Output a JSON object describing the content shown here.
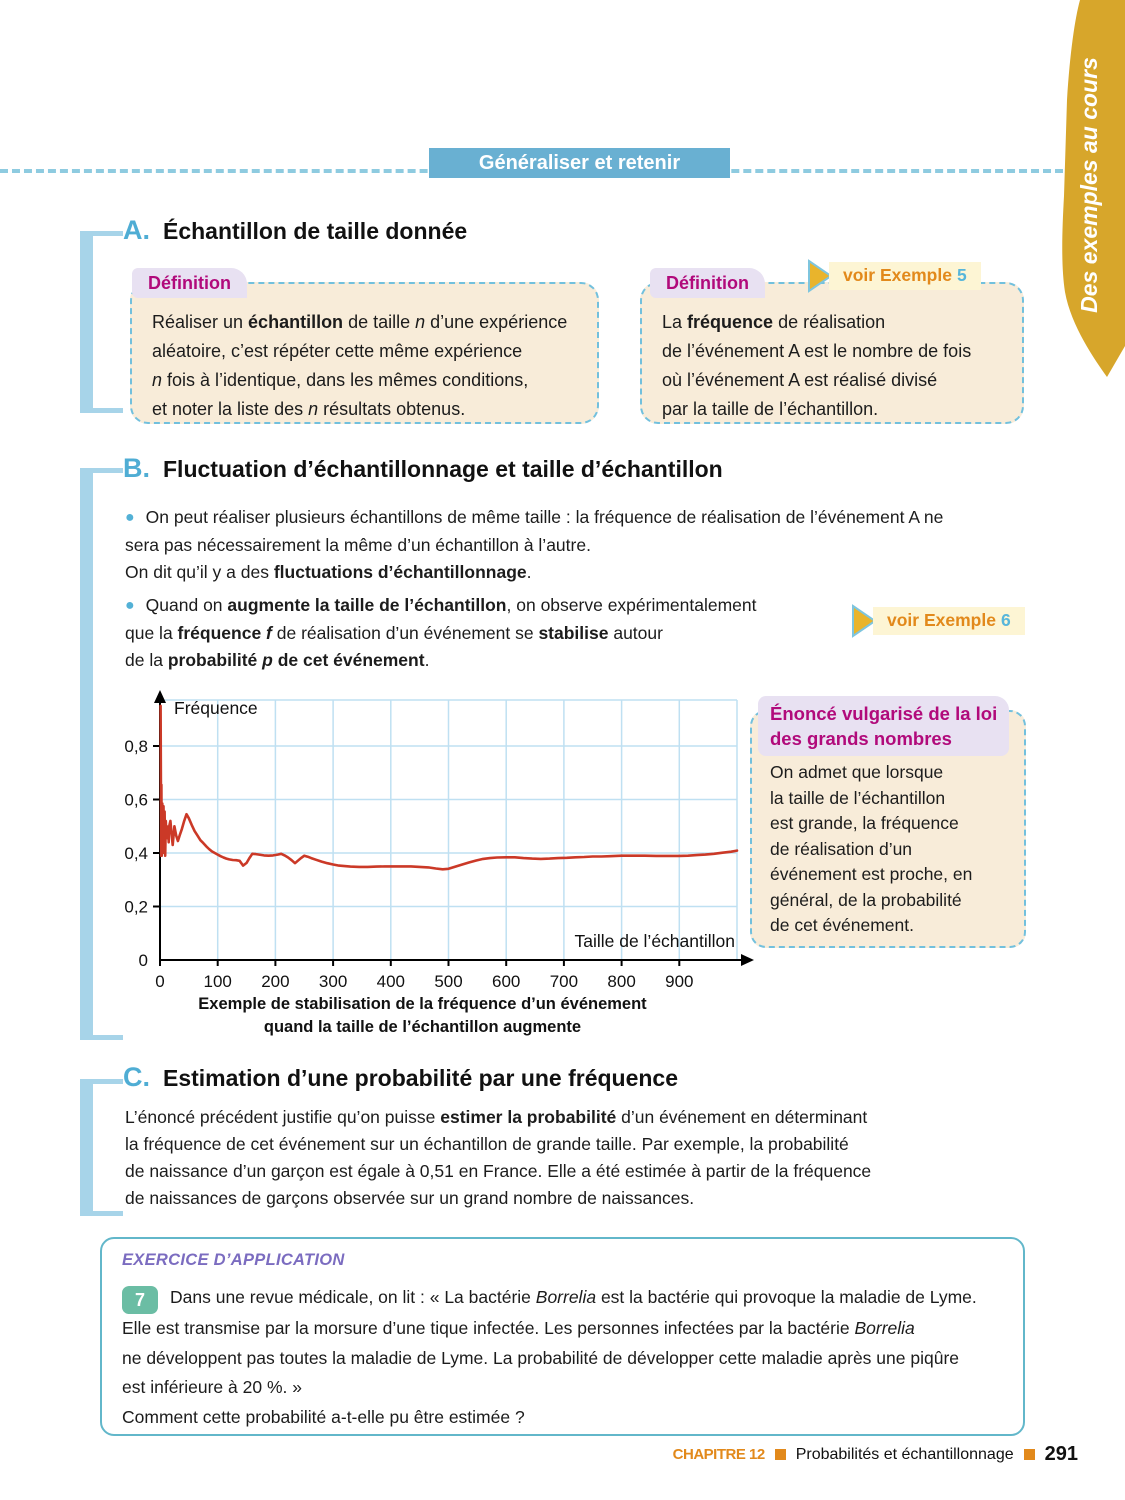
{
  "banner": {
    "label": "Généraliser et retenir"
  },
  "side_tab": {
    "label": "Des exemples au cours",
    "color": "#d7a62b"
  },
  "icons": {
    "bullet": "●"
  },
  "sections": {
    "a": {
      "letter": "A.",
      "title": "Échantillon de taille donnée"
    },
    "b": {
      "letter": "B.",
      "title": "Fluctuation d’échantillonnage et taille d’échantillon"
    },
    "c": {
      "letter": "C.",
      "title": "Estimation d’une probabilité par une fréquence"
    }
  },
  "definitions": [
    {
      "label": "Définition",
      "rich": [
        {
          "t": "Réaliser un "
        },
        {
          "t": "échantillon",
          "b": true
        },
        {
          "t": " de taille "
        },
        {
          "t": "n",
          "i": true
        },
        {
          "t": " d’une expérience"
        },
        {
          "br": true
        },
        {
          "t": "aléatoire, c’est répéter cette même expérience"
        },
        {
          "br": true
        },
        {
          "t": "n",
          "i": true
        },
        {
          "t": " fois à l’identique, dans les mêmes conditions,"
        },
        {
          "br": true
        },
        {
          "t": "et noter la liste des "
        },
        {
          "t": "n",
          "i": true
        },
        {
          "t": " résultats obtenus."
        }
      ]
    },
    {
      "label": "Définition",
      "rich": [
        {
          "t": "La "
        },
        {
          "t": "fréquence",
          "b": true
        },
        {
          "t": " de réalisation"
        },
        {
          "br": true
        },
        {
          "t": "de l’événement A est le nombre de fois"
        },
        {
          "br": true
        },
        {
          "t": "où l’événement A est réalisé divisé"
        },
        {
          "br": true
        },
        {
          "t": "par la taille de l’échantillon."
        }
      ]
    }
  ],
  "examples": [
    {
      "label": "voir Exemple",
      "number": "5"
    },
    {
      "label": "voir Exemple",
      "number": "6"
    }
  ],
  "paragraphs": {
    "b1": [
      {
        "t": "On peut réaliser plusieurs échantillons de même taille : la fréquence de réalisation de l’événement A ne"
      },
      {
        "br": true
      },
      {
        "t": "sera pas nécessairement la même d’un échantillon à l’autre."
      },
      {
        "br": true
      },
      {
        "t": "On dit qu’il y a des "
      },
      {
        "t": "fluctuations d’échantillonnage",
        "b": true
      },
      {
        "t": "."
      }
    ],
    "b2": [
      {
        "t": "Quand on "
      },
      {
        "t": "augmente la taille de l’échantillon",
        "b": true
      },
      {
        "t": ", on observe expérimentalement"
      },
      {
        "br": true
      },
      {
        "t": "que la "
      },
      {
        "t": "fréquence ",
        "b": true
      },
      {
        "t": "f",
        "b": true,
        "i": true
      },
      {
        "t": " de réalisation d’un événement se "
      },
      {
        "t": "stabilise",
        "b": true
      },
      {
        "t": " autour"
      },
      {
        "br": true
      },
      {
        "t": "de la "
      },
      {
        "t": "probabilité ",
        "b": true
      },
      {
        "t": "p",
        "b": true,
        "i": true
      },
      {
        "t": " de cet événement",
        "b": true
      },
      {
        "t": "."
      }
    ],
    "c1": [
      {
        "t": "L’énoncé précédent justifie qu’on puisse "
      },
      {
        "t": "estimer la probabilité",
        "b": true
      },
      {
        "t": " d’un événement en déterminant"
      },
      {
        "br": true
      },
      {
        "t": "la fréquence de cet événement sur un échantillon de grande taille. Par exemple, la probabilité"
      },
      {
        "br": true
      },
      {
        "t": "de naissance d’un garçon est égale à 0,51 en France. Elle a été estimée à partir de la fréquence"
      },
      {
        "br": true
      },
      {
        "t": "de naissances de garçons observée sur un grand nombre de naissances."
      }
    ]
  },
  "law_box": {
    "title_line1": "Énoncé vulgarisé de la loi",
    "title_line2": "des grands nombres",
    "rich": [
      {
        "t": "On admet que lorsque"
      },
      {
        "br": true
      },
      {
        "t": "la taille de l’échantillon"
      },
      {
        "br": true
      },
      {
        "t": "est grande, la fréquence"
      },
      {
        "br": true
      },
      {
        "t": "de réalisation d’un"
      },
      {
        "br": true
      },
      {
        "t": "événement est proche, en"
      },
      {
        "br": true
      },
      {
        "t": "général, de la probabilité"
      },
      {
        "br": true
      },
      {
        "t": "de cet événement."
      }
    ]
  },
  "chart_data": {
    "type": "line",
    "title": "Exemple de stabilisation de la fréquence d’un événement quand la taille de l’échantillon augmente",
    "caption_line1": "Exemple de stabilisation de la fréquence d’un événement",
    "caption_line2": "quand la taille de l’échantillon augmente",
    "xlabel": "Taille de l’échantillon",
    "ylabel": "Fréquence",
    "xlim": [
      0,
      1000
    ],
    "ylim": [
      0,
      0.97
    ],
    "grid": true,
    "x_ticks": [
      0,
      100,
      200,
      300,
      400,
      500,
      600,
      700,
      800,
      900
    ],
    "grid_x": [
      100,
      200,
      300,
      400,
      500,
      600,
      700,
      800,
      900,
      1000
    ],
    "y_ticks": [
      0.2,
      0.4,
      0.6,
      0.8
    ],
    "y_tick_labels": [
      "0,2",
      "0,4",
      "0,6",
      "0,8"
    ],
    "y_zero_label": "0",
    "x_zero_label": "0",
    "line_color": "#cb3927",
    "grid_color": "#bfe0f2",
    "axis_color": "#000000",
    "points": [
      [
        1,
        0.95
      ],
      [
        2,
        0.39
      ],
      [
        2.5,
        0.655
      ],
      [
        3,
        0.39
      ],
      [
        4,
        0.585
      ],
      [
        5,
        0.4
      ],
      [
        6,
        0.575
      ],
      [
        7,
        0.45
      ],
      [
        8,
        0.555
      ],
      [
        9,
        0.39
      ],
      [
        10,
        0.52
      ],
      [
        11,
        0.47
      ],
      [
        12,
        0.5
      ],
      [
        13,
        0.455
      ],
      [
        14,
        0.49
      ],
      [
        15,
        0.44
      ],
      [
        16,
        0.5
      ],
      [
        18,
        0.52
      ],
      [
        20,
        0.475
      ],
      [
        22,
        0.43
      ],
      [
        25,
        0.5
      ],
      [
        28,
        0.465
      ],
      [
        31,
        0.445
      ],
      [
        34,
        0.465
      ],
      [
        38,
        0.49
      ],
      [
        42,
        0.52
      ],
      [
        46,
        0.545
      ],
      [
        50,
        0.53
      ],
      [
        55,
        0.505
      ],
      [
        60,
        0.482
      ],
      [
        65,
        0.465
      ],
      [
        70,
        0.448
      ],
      [
        75,
        0.437
      ],
      [
        80,
        0.425
      ],
      [
        85,
        0.415
      ],
      [
        90,
        0.406
      ],
      [
        95,
        0.4
      ],
      [
        100,
        0.394
      ],
      [
        105,
        0.388
      ],
      [
        110,
        0.383
      ],
      [
        115,
        0.379
      ],
      [
        120,
        0.376
      ],
      [
        126,
        0.374
      ],
      [
        132,
        0.373
      ],
      [
        138,
        0.371
      ],
      [
        144,
        0.353
      ],
      [
        150,
        0.363
      ],
      [
        155,
        0.381
      ],
      [
        160,
        0.397
      ],
      [
        166,
        0.396
      ],
      [
        172,
        0.394
      ],
      [
        180,
        0.391
      ],
      [
        188,
        0.39
      ],
      [
        196,
        0.391
      ],
      [
        204,
        0.394
      ],
      [
        210,
        0.397
      ],
      [
        216,
        0.391
      ],
      [
        222,
        0.383
      ],
      [
        228,
        0.373
      ],
      [
        234,
        0.362
      ],
      [
        240,
        0.373
      ],
      [
        245,
        0.382
      ],
      [
        250,
        0.39
      ],
      [
        256,
        0.386
      ],
      [
        262,
        0.381
      ],
      [
        270,
        0.375
      ],
      [
        280,
        0.368
      ],
      [
        290,
        0.362
      ],
      [
        300,
        0.357
      ],
      [
        310,
        0.353
      ],
      [
        320,
        0.351
      ],
      [
        330,
        0.349
      ],
      [
        345,
        0.348
      ],
      [
        360,
        0.348
      ],
      [
        375,
        0.349
      ],
      [
        390,
        0.35
      ],
      [
        405,
        0.35
      ],
      [
        420,
        0.35
      ],
      [
        435,
        0.35
      ],
      [
        450,
        0.348
      ],
      [
        465,
        0.346
      ],
      [
        478,
        0.342
      ],
      [
        490,
        0.339
      ],
      [
        500,
        0.341
      ],
      [
        512,
        0.349
      ],
      [
        524,
        0.357
      ],
      [
        536,
        0.365
      ],
      [
        548,
        0.372
      ],
      [
        560,
        0.378
      ],
      [
        572,
        0.381
      ],
      [
        584,
        0.383
      ],
      [
        600,
        0.384
      ],
      [
        615,
        0.384
      ],
      [
        630,
        0.381
      ],
      [
        645,
        0.379
      ],
      [
        660,
        0.378
      ],
      [
        675,
        0.379
      ],
      [
        690,
        0.381
      ],
      [
        705,
        0.382
      ],
      [
        720,
        0.384
      ],
      [
        735,
        0.385
      ],
      [
        750,
        0.387
      ],
      [
        765,
        0.387
      ],
      [
        780,
        0.388
      ],
      [
        800,
        0.39
      ],
      [
        820,
        0.39
      ],
      [
        840,
        0.39
      ],
      [
        860,
        0.389
      ],
      [
        880,
        0.389
      ],
      [
        900,
        0.389
      ],
      [
        915,
        0.39
      ],
      [
        930,
        0.392
      ],
      [
        945,
        0.394
      ],
      [
        960,
        0.397
      ],
      [
        975,
        0.401
      ],
      [
        990,
        0.405
      ],
      [
        1000,
        0.409
      ]
    ]
  },
  "exercise": {
    "header": "EXERCICE D’APPLICATION",
    "number": "7",
    "rich": [
      {
        "t": "Dans une revue médicale, on lit : « La bactérie "
      },
      {
        "t": "Borrelia",
        "i": true
      },
      {
        "t": " est la bactérie qui provoque la maladie de Lyme."
      },
      {
        "br": true
      },
      {
        "t": "Elle est transmise par la morsure d’une tique infectée. Les personnes infectées par la bactérie "
      },
      {
        "t": "Borrelia",
        "i": true
      },
      {
        "br": true
      },
      {
        "t": "ne développent pas toutes la maladie de Lyme. La probabilité de développer cette maladie après une piqûre"
      },
      {
        "br": true
      },
      {
        "t": "est inférieure à 20 %. »"
      },
      {
        "br": true
      },
      {
        "t": "Comment cette probabilité a-t-elle pu être estimée ?"
      }
    ]
  },
  "footer": {
    "chapter": "CHAPITRE 12",
    "title": "Probabilités et échantillonnage",
    "page": "291"
  }
}
